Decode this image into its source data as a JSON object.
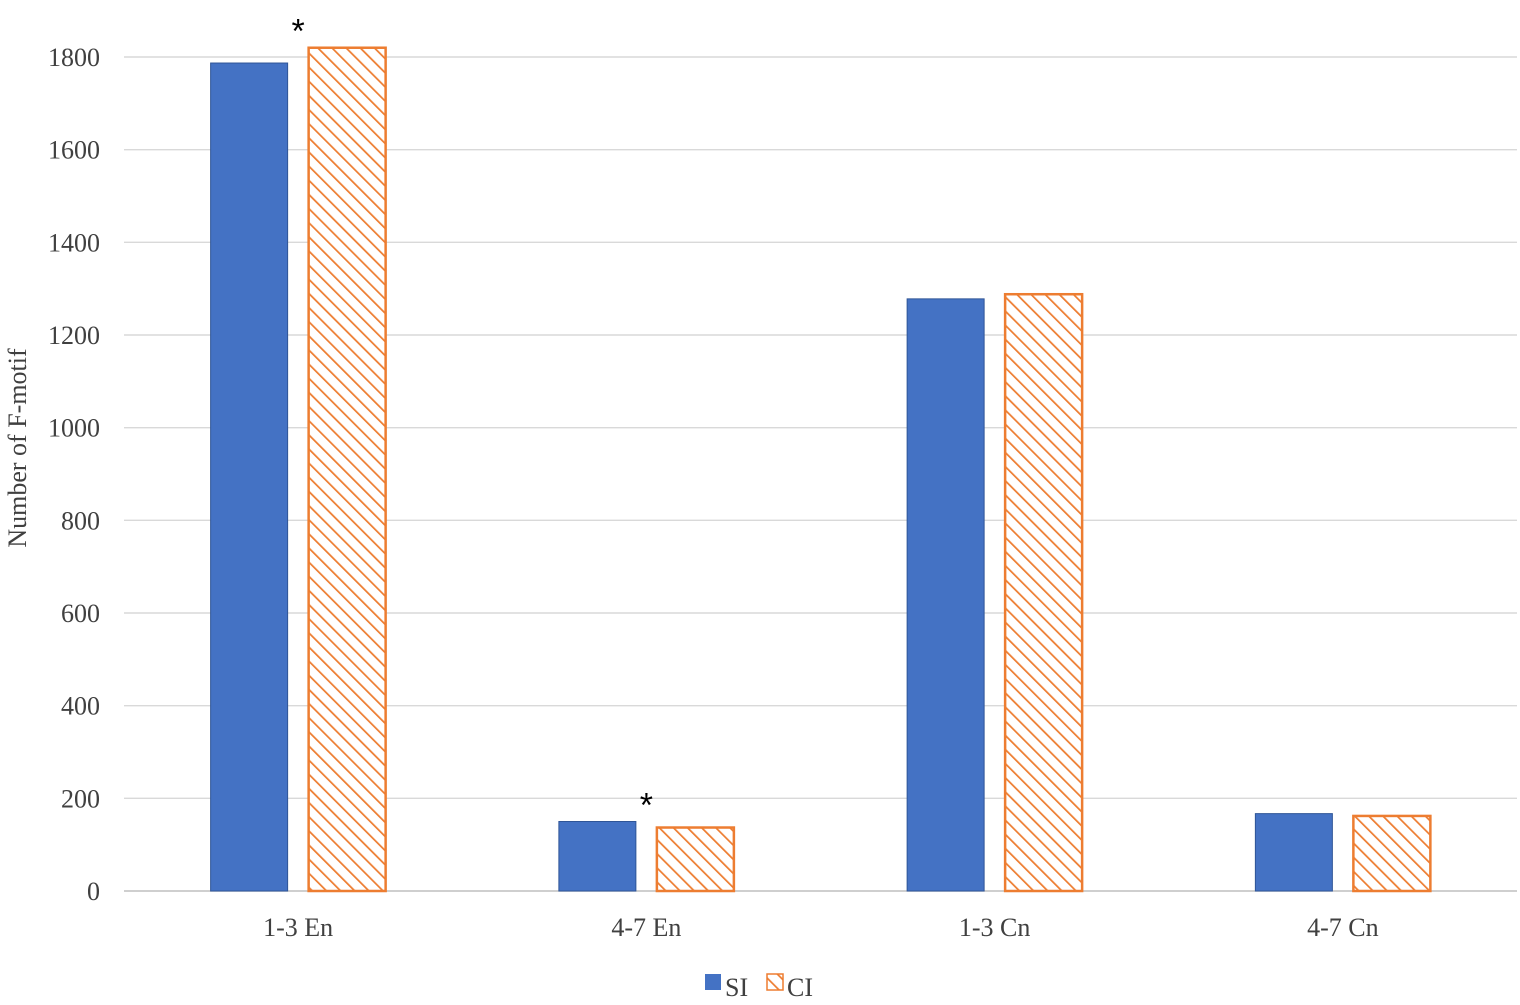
{
  "chart_data": {
    "type": "bar",
    "categories": [
      "1-3 En",
      "4-7 En",
      "1-3 Cn",
      "4-7 Cn"
    ],
    "series": [
      {
        "name": "SI",
        "values": [
          1787,
          150,
          1278,
          167
        ],
        "color": "#4472C4",
        "pattern": "solid"
      },
      {
        "name": "CI",
        "values": [
          1820,
          137,
          1288,
          162
        ],
        "color": "#ED7D31",
        "pattern": "diagonal-hatch"
      }
    ],
    "title": "",
    "xlabel": "",
    "ylabel": "Number of F-motif",
    "ylim": [
      0,
      1800
    ],
    "yticks": [
      0,
      200,
      400,
      600,
      800,
      1000,
      1200,
      1400,
      1600,
      1800
    ],
    "grid": true,
    "legend_position": "bottom",
    "annotations": [
      {
        "text": "*",
        "category": "1-3 En"
      },
      {
        "text": "*",
        "category": "4-7 En"
      }
    ]
  }
}
